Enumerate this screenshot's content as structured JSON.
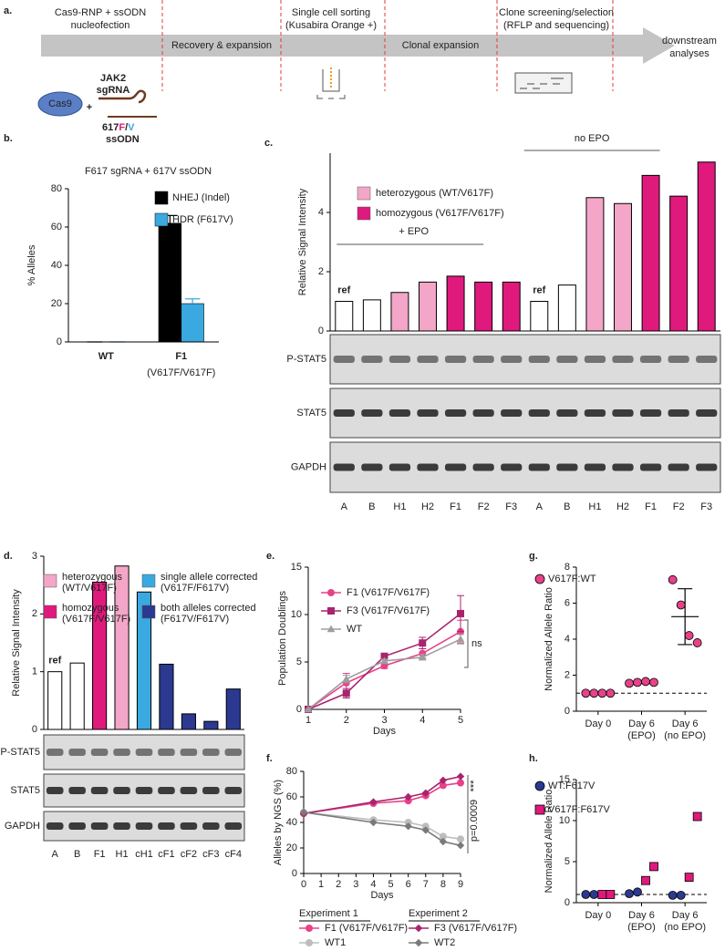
{
  "diagram": {
    "panel": "a.",
    "steps": [
      [
        "Cas9-RNP + ssODN",
        "nucleofection"
      ],
      [
        "Recovery & expansion"
      ],
      [
        "Single cell sorting",
        "(Kusabira Orange +)"
      ],
      [
        "Clonal expansion"
      ],
      [
        "Clone screening/selection",
        "(RFLP and sequencing)"
      ]
    ],
    "end": [
      "downstream",
      "analyses"
    ],
    "protein": "Cas9",
    "plus": "+",
    "guide": [
      "JAK2",
      "sgRNA"
    ],
    "donor": {
      "prefix": "617",
      "f": "F",
      "slash": "/",
      "v": "V",
      "suffix": "ssODN"
    }
  },
  "chart_data": [
    {
      "panel": "b.",
      "type": "bar",
      "title": "F617 sgRNA + 617V ssODN",
      "y_label": "% Alleles",
      "categories": [
        "WT",
        "F1"
      ],
      "category_sublabels": [
        null,
        "(V617F/V617F)"
      ],
      "series": [
        {
          "name": "NHEJ (Indel)",
          "color": "#000000",
          "values": [
            0,
            62
          ],
          "errors": [
            0,
            4
          ]
        },
        {
          "name": "HDR (F617V)",
          "color": "#3aa9e0",
          "values": [
            0,
            20
          ],
          "errors": [
            0,
            2.5
          ]
        }
      ],
      "ylim": [
        0,
        80
      ],
      "yticks": [
        0,
        20,
        40,
        60,
        80
      ]
    },
    {
      "panel": "c.",
      "type": "bar",
      "y_label": "Relative Signal Intensity",
      "categories": [
        "A",
        "B",
        "H1",
        "H2",
        "F1",
        "F2",
        "F3",
        "A",
        "B",
        "H1",
        "H2",
        "F1",
        "F2",
        "F3"
      ],
      "values": [
        1.0,
        1.05,
        1.3,
        1.65,
        1.85,
        1.65,
        1.65,
        1.0,
        1.55,
        4.5,
        4.3,
        5.25,
        4.55,
        5.7
      ],
      "colors": [
        "#ffffff",
        "#ffffff",
        "#f4a6c8",
        "#f4a6c8",
        "#e0197d",
        "#e0197d",
        "#e0197d",
        "#ffffff",
        "#ffffff",
        "#f4a6c8",
        "#f4a6c8",
        "#e0197d",
        "#e0197d",
        "#e0197d"
      ],
      "legend": [
        {
          "name": "heterozygous (WT/V617F)",
          "color": "#f4a6c8"
        },
        {
          "name": "homozygous (V617F/V617F)",
          "color": "#e0197d"
        }
      ],
      "annotations": [
        "ref",
        "+ EPO",
        "ref",
        "no EPO"
      ],
      "blots": [
        "P-STAT5",
        "STAT5",
        "GAPDH"
      ],
      "ylim": [
        0,
        6
      ],
      "yticks": [
        0,
        2,
        4
      ]
    },
    {
      "panel": "d.",
      "type": "bar",
      "y_label": "Relative Signal Intensity",
      "categories": [
        "A",
        "B",
        "F1",
        "H1",
        "cH1",
        "cF1",
        "cF2",
        "cF3",
        "cF4"
      ],
      "values": [
        1.0,
        1.15,
        2.55,
        2.83,
        2.38,
        1.13,
        0.27,
        0.14,
        0.7
      ],
      "colors": [
        "#ffffff",
        "#ffffff",
        "#e0197d",
        "#f4a6c8",
        "#3aa9e0",
        "#2b3990",
        "#2b3990",
        "#2b3990",
        "#2b3990"
      ],
      "legend": [
        {
          "name": [
            "heterozygous",
            "(WT/V617F)"
          ],
          "color": "#f4a6c8"
        },
        {
          "name": [
            "homozygous",
            "(V617F/V617F)"
          ],
          "color": "#e0197d"
        },
        {
          "name": [
            "single allele corrected",
            "(V617F/F617V)"
          ],
          "color": "#3aa9e0"
        },
        {
          "name": [
            "both alleles corrected",
            "(F617V/F617V)"
          ],
          "color": "#2b3990"
        }
      ],
      "annotations": [
        "ref"
      ],
      "blots": [
        "P-STAT5",
        "STAT5",
        "GAPDH"
      ],
      "ylim": [
        0,
        3
      ],
      "yticks": [
        0,
        1,
        2,
        3
      ]
    },
    {
      "panel": "e.",
      "type": "line",
      "x_label": "Days",
      "y_label": "Population Doublings",
      "x": [
        1,
        2,
        3,
        4,
        5
      ],
      "series": [
        {
          "name": "F1 (V617F/V617F)",
          "color": "#e8418a",
          "marker": "circle",
          "values": [
            0,
            2.8,
            4.6,
            5.9,
            8.2
          ],
          "errors": [
            0,
            1.0,
            0.3,
            0.5,
            1.2
          ]
        },
        {
          "name": "F3 (V617F/V617F)",
          "color": "#a8246d",
          "marker": "square",
          "values": [
            0,
            1.7,
            5.6,
            7.0,
            10.1
          ],
          "errors": [
            0,
            0.5,
            0.3,
            0.6,
            1.9
          ]
        },
        {
          "name": "WT",
          "color": "#9e9e9e",
          "marker": "triangle",
          "values": [
            0,
            3.2,
            5.1,
            5.5,
            7.4
          ],
          "errors": [
            0,
            0.4,
            0.2,
            0.3,
            0.5
          ]
        }
      ],
      "annotations": [
        "ns"
      ],
      "xlim": [
        1,
        5
      ],
      "xticks": [
        1,
        2,
        3,
        4,
        5
      ],
      "ylim": [
        0,
        15
      ],
      "yticks": [
        0,
        5,
        10,
        15
      ]
    },
    {
      "panel": "f.",
      "type": "line",
      "x_label": "Days",
      "y_label": "Alleles by NGS (%)",
      "x": [
        0,
        4,
        6,
        7,
        8,
        9
      ],
      "legend_groups": [
        "Experiment 1",
        "Experiment 2"
      ],
      "series": [
        {
          "name": "F1 (V617F/V617F)",
          "color": "#e8418a",
          "marker": "circle",
          "values": [
            47,
            55,
            57,
            61,
            69,
            71
          ]
        },
        {
          "name": "WT1",
          "color": "#bdbdbd",
          "marker": "circle",
          "values": [
            48,
            42,
            40,
            37,
            29,
            27
          ]
        },
        {
          "name": "F3 (V617F/V617F)",
          "color": "#a8246d",
          "marker": "diamond",
          "values": [
            47,
            56,
            60,
            63,
            73,
            76
          ]
        },
        {
          "name": "WT2",
          "color": "#7a7a7a",
          "marker": "diamond",
          "values": [
            48,
            40,
            37,
            34,
            25,
            22
          ]
        }
      ],
      "annotations": [
        "***",
        "p=0.0009"
      ],
      "xlim": [
        0,
        9
      ],
      "xticks": [
        0,
        1,
        2,
        3,
        4,
        5,
        6,
        7,
        8,
        9
      ],
      "ylim": [
        0,
        80
      ],
      "yticks": [
        0,
        20,
        40,
        60,
        80
      ]
    },
    {
      "panel": "g.",
      "type": "scatter",
      "y_label": "Normalized Allele Ratio",
      "categories": [
        [
          "Day 0"
        ],
        [
          "Day 6",
          "(EPO)"
        ],
        [
          "Day 6",
          "(no EPO)"
        ]
      ],
      "series": [
        {
          "name": "V617F:WT",
          "color": "#e8418a",
          "marker": "circle",
          "values": [
            [
              1,
              1,
              1,
              1
            ],
            [
              1.55,
              1.6,
              1.65,
              1.6
            ],
            [
              7.3,
              5.9,
              4.2,
              3.8
            ]
          ],
          "means": [
            1,
            1.6,
            5.25
          ],
          "sds": [
            0,
            0.05,
            1.55
          ]
        }
      ],
      "reference_line": 1,
      "ylim": [
        0,
        8
      ],
      "yticks": [
        0,
        2,
        4,
        6,
        8
      ]
    },
    {
      "panel": "h.",
      "type": "scatter",
      "y_label": "Normalized Allele Ratio",
      "categories": [
        [
          "Day 0"
        ],
        [
          "Day 6",
          "(EPO)"
        ],
        [
          "Day 6",
          "(no EPO)"
        ]
      ],
      "series": [
        {
          "name": "WT:F617V",
          "color": "#2b3990",
          "marker": "circle",
          "values": [
            [
              1,
              1
            ],
            [
              1.1,
              1.3
            ],
            [
              0.9,
              0.9
            ]
          ]
        },
        {
          "name": "V617F:F617V",
          "color": "#e0197d",
          "marker": "square",
          "values": [
            [
              1,
              1
            ],
            [
              2.7,
              4.4
            ],
            [
              3.1,
              10.5
            ]
          ]
        }
      ],
      "reference_line": 1,
      "ylim": [
        0,
        15
      ],
      "yticks": [
        0,
        5,
        10,
        15
      ]
    }
  ]
}
